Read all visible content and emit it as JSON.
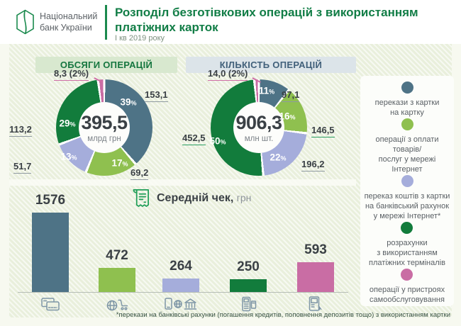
{
  "header": {
    "logo_line1": "Національний",
    "logo_line2": "банк України",
    "title_line1": "Розподіл безготівкових операцій з використанням",
    "title_line2": "платіжних карток",
    "subtitle": "І кв 2019 року"
  },
  "colors": {
    "slate_blue": "#4e7386",
    "light_green": "#8fc04f",
    "lavender": "#a5addb",
    "dark_green": "#127c3c",
    "pink": "#c96da4",
    "brand_green": "#1b8a4e",
    "title_green": "#117d46",
    "badge_vol_bg": "#d8e8cf",
    "badge_cnt_bg": "#dce4e9"
  },
  "misc": {
    "pct": "%"
  },
  "legend": {
    "items": [
      {
        "color": "#4e7386",
        "label": "перекази з картки\nна картку"
      },
      {
        "color": "#8fc04f",
        "label": "операції з оплати товарів/\nпослуг у мережі Інтернет"
      },
      {
        "color": "#a5addb",
        "label": "переказ коштів з картки\nна банківський рахунок\nу мережі Інтернет*"
      },
      {
        "color": "#127c3c",
        "label": "розрахунки\nз використанням\nплатіжних терміналів"
      },
      {
        "color": "#c96da4",
        "label": "операції у пристроях\nсамообслуговування"
      }
    ]
  },
  "chart_data": [
    {
      "type": "pie",
      "subtype": "donut",
      "title": "ОБСЯГИ ОПЕРАЦІЙ",
      "center_value": "395,5",
      "center_unit": "млрд грн",
      "slices": [
        {
          "label": "перекази з картки на картку",
          "value": 153.1,
          "display": "153,1",
          "pct": 39,
          "pct_display": "39",
          "color": "#4e7386"
        },
        {
          "label": "операції з оплати товарів/послуг у мережі Інтернет",
          "value": 69.2,
          "display": "69,2",
          "pct": 17,
          "pct_display": "17",
          "color": "#8fc04f"
        },
        {
          "label": "переказ коштів з картки на банківський рахунок у мережі Інтернет*",
          "value": 51.7,
          "display": "51,7",
          "pct": 13,
          "pct_display": "13",
          "color": "#a5addb"
        },
        {
          "label": "розрахунки з використанням платіжних терміналів",
          "value": 113.2,
          "display": "113,2",
          "pct": 29,
          "pct_display": "29",
          "color": "#127c3c"
        },
        {
          "label": "операції у пристроях самообслуговування",
          "value": 8.3,
          "display": "8,3 (2%)",
          "pct": 2,
          "color": "#c96da4"
        }
      ]
    },
    {
      "type": "pie",
      "subtype": "donut",
      "title": "КІЛЬКІСТЬ ОПЕРАЦІЙ",
      "center_value": "906,3",
      "center_unit": "млн шт.",
      "slices": [
        {
          "label": "перекази з картки на картку",
          "value": 97.1,
          "display": "97,1",
          "pct": 11,
          "pct_display": "11",
          "color": "#4e7386"
        },
        {
          "label": "операції з оплати товарів/послуг у мережі Інтернет",
          "value": 146.5,
          "display": "146,5",
          "pct": 16,
          "pct_display": "16",
          "color": "#8fc04f"
        },
        {
          "label": "переказ коштів з картки на банківський рахунок у мережі Інтернет*",
          "value": 196.2,
          "display": "196,2",
          "pct": 22,
          "pct_display": "22",
          "color": "#a5addb"
        },
        {
          "label": "розрахунки з використанням платіжних терміналів",
          "value": 452.5,
          "display": "452,5",
          "pct": 50,
          "pct_display": "50",
          "color": "#127c3c"
        },
        {
          "label": "операції у пристроях самообслуговування",
          "value": 14.0,
          "display": "14,0 (2%)",
          "pct": 2,
          "color": "#c96da4"
        }
      ]
    },
    {
      "type": "bar",
      "title": "Середній чек,",
      "unit": "грн",
      "categories": [
        "перекази з картки на картку",
        "операції з оплати товарів/послуг у мережі Інтернет",
        "переказ коштів з картки на банківський рахунок у мережі Інтернет*",
        "розрахунки з використанням платіжних терміналів",
        "операції у пристроях самообслуговування"
      ],
      "values": [
        1576,
        472,
        264,
        250,
        593
      ],
      "labels": [
        "1576",
        "472",
        "264",
        "250",
        "593"
      ],
      "colors": [
        "#4e7386",
        "#8fc04f",
        "#a5addb",
        "#127c3c",
        "#c96da4"
      ],
      "icons": [
        "payment-cards-icon",
        "online-shopping-icon",
        "online-bank-transfer-icon",
        "pos-terminal-icon",
        "self-service-device-icon"
      ],
      "ylim": [
        0,
        1576
      ]
    }
  ],
  "footnote": "*перекази на банківські рахунки (погашення кредитів, поповнення депозитів тощо) з використанням картки"
}
